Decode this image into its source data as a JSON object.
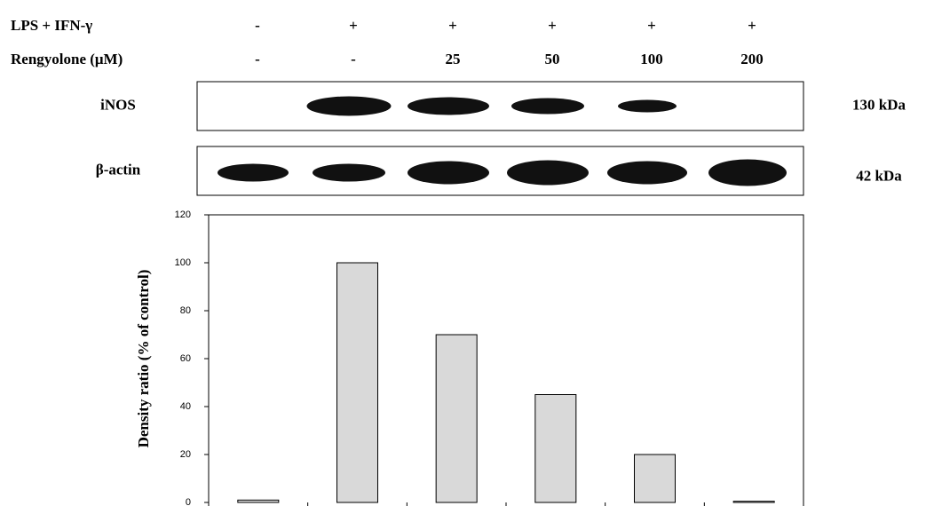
{
  "treatments": [
    {
      "label": "LPS + IFN-γ",
      "values": [
        "-",
        "+",
        "+",
        "+",
        "+",
        "+"
      ]
    },
    {
      "label": "Rengyolone (μM)",
      "values": [
        "-",
        "-",
        "25",
        "50",
        "100",
        "200"
      ]
    }
  ],
  "blots": [
    {
      "label": "iNOS",
      "size": "130 kDa"
    },
    {
      "label": "β-actin",
      "size": "42 kDa"
    }
  ],
  "chart_data": {
    "type": "bar",
    "y_label": "Density ratio (% of control)",
    "categories": [
      null,
      null,
      null,
      null,
      null,
      null
    ],
    "values": [
      1,
      100,
      70,
      45,
      20,
      0.5
    ],
    "color": "#d9d9d9",
    "ylim": [
      0,
      120
    ],
    "yticks": [
      0,
      20,
      40,
      60,
      80,
      100,
      120
    ]
  }
}
